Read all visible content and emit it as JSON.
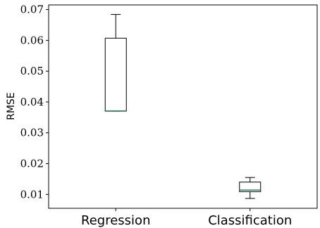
{
  "chart_data": {
    "type": "box",
    "ylabel": "RMSE",
    "xlabel": "",
    "ylim": [
      0.0055,
      0.0715
    ],
    "yticks": [
      0.01,
      0.02,
      0.03,
      0.04,
      0.05,
      0.06,
      0.07
    ],
    "ytick_labels": [
      "0.01",
      "0.02",
      "0.03",
      "0.04",
      "0.05",
      "0.06",
      "0.07"
    ],
    "categories": [
      "Regression",
      "Classification"
    ],
    "boxes": [
      {
        "category": "Regression",
        "whisker_low": 0.037,
        "q1": 0.037,
        "median": 0.0371,
        "q3": 0.0607,
        "whisker_high": 0.0684
      },
      {
        "category": "Classification",
        "whisker_low": 0.0087,
        "q1": 0.0109,
        "median": 0.0114,
        "q3": 0.014,
        "whisker_high": 0.0155
      }
    ],
    "colors": {
      "median": "#2e7d5b",
      "box": "#000000"
    }
  }
}
